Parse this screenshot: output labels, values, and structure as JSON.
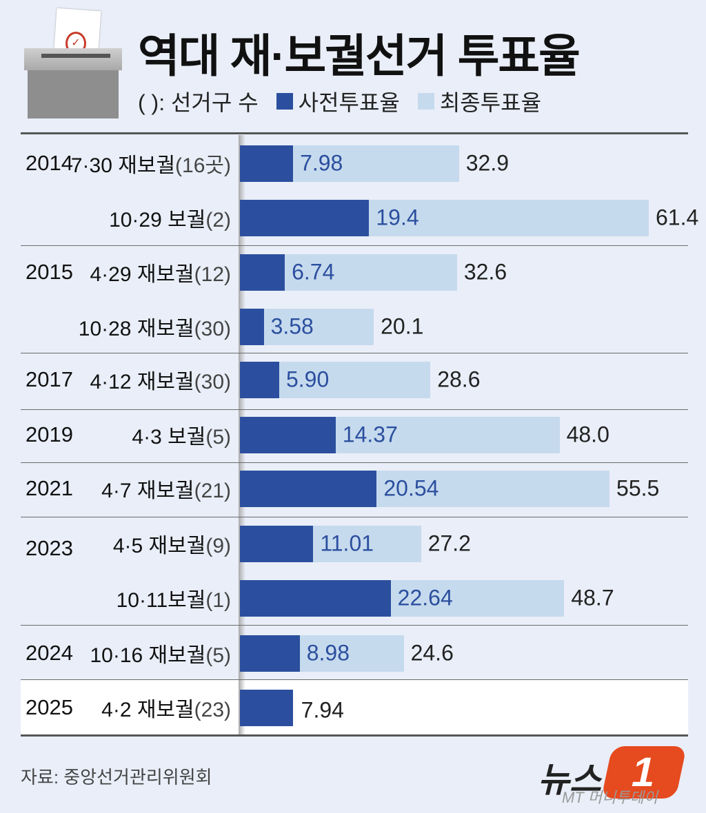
{
  "header": {
    "title": "역대 재·보궐선거 투표율",
    "legend_note": "( ): 선거구 수",
    "legend_early": "사전투표율",
    "legend_final": "최종투표율"
  },
  "colors": {
    "early": "#2b4f9e",
    "final": "#c6daee",
    "background": "#e9eef8"
  },
  "chart_data": {
    "type": "bar",
    "orientation": "horizontal",
    "stacked": false,
    "overlapping": true,
    "series": [
      {
        "name": "사전투표율"
      },
      {
        "name": "최종투표율"
      }
    ],
    "rows": [
      {
        "year": "2014",
        "event": "7·30 재보궐",
        "count": "(16곳)",
        "early": 7.98,
        "early_label": "7.98",
        "final": 32.9,
        "final_label": "32.9"
      },
      {
        "year": "",
        "event": "10·29 보궐",
        "count": "(2)",
        "early": 19.4,
        "early_label": "19.4",
        "final": 61.4,
        "final_label": "61.4"
      },
      {
        "year": "2015",
        "event": "4·29 재보궐",
        "count": "(12)",
        "early": 6.74,
        "early_label": "6.74",
        "final": 32.6,
        "final_label": "32.6"
      },
      {
        "year": "",
        "event": "10·28 재보궐",
        "count": "(30)",
        "early": 3.58,
        "early_label": "3.58",
        "final": 20.1,
        "final_label": "20.1"
      },
      {
        "year": "2017",
        "event": "4·12 재보궐",
        "count": "(30)",
        "early": 5.9,
        "early_label": "5.90",
        "final": 28.6,
        "final_label": "28.6"
      },
      {
        "year": "2019",
        "event": "4·3 보궐",
        "count": "(5)",
        "early": 14.37,
        "early_label": "14.37",
        "final": 48.0,
        "final_label": "48.0"
      },
      {
        "year": "2021",
        "event": "4·7 재보궐",
        "count": "(21)",
        "early": 20.54,
        "early_label": "20.54",
        "final": 55.5,
        "final_label": "55.5"
      },
      {
        "year": "2023",
        "event": "4·5 재보궐",
        "count": "(9)",
        "early": 11.01,
        "early_label": "11.01",
        "final": 27.2,
        "final_label": "27.2"
      },
      {
        "year": "",
        "event": "10·11보궐",
        "count": "(1)",
        "early": 22.64,
        "early_label": "22.64",
        "final": 48.7,
        "final_label": "48.7"
      },
      {
        "year": "2024",
        "event": "10·16 재보궐",
        "count": "(5)",
        "early": 8.98,
        "early_label": "8.98",
        "final": 24.6,
        "final_label": "24.6"
      },
      {
        "year": "2025",
        "event": "4·2 재보궐",
        "count": "(23)",
        "early": 7.94,
        "early_label": "7.94",
        "final": null,
        "final_label": ""
      }
    ],
    "xlim": [
      0,
      61.4
    ],
    "grid": false
  },
  "footer": {
    "source": "자료: 중앙선거관리위원회",
    "logo_text": "뉴스",
    "logo_number": "1",
    "logo_sub": "MT 머니투데이"
  }
}
